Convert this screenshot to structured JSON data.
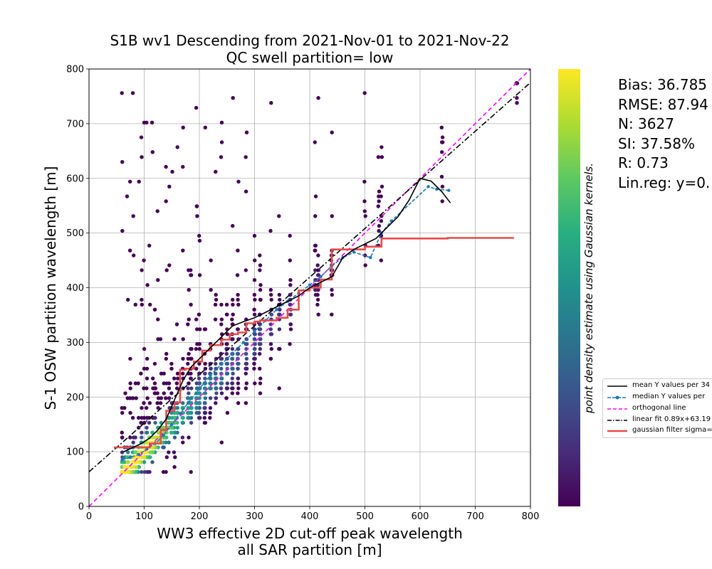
{
  "chart_data": {
    "type": "scatter",
    "title": "S1B wv1 Descending from 2021-Nov-01 to 2021-Nov-22",
    "subtitle": "QC swell partition= low",
    "xlabel_line1": "WW3 effective 2D cut-off peak wavelength",
    "xlabel_line2": "all SAR partition [m]",
    "ylabel": "S-1 OSW partition wavelength [m]",
    "colorbar_label": "point density estimate using Gaussian kernels.",
    "colormap": "viridis",
    "xlim": [
      0,
      800
    ],
    "ylim": [
      0,
      800
    ],
    "xticks": [
      "0",
      "100",
      "200",
      "300",
      "400",
      "500",
      "600",
      "700",
      "800"
    ],
    "yticks": [
      "0",
      "100",
      "200",
      "300",
      "400",
      "500",
      "600",
      "700",
      "800"
    ],
    "grid": true,
    "legend_position": "right, outside",
    "stats": [
      "Bias: 36.785",
      "RMSE: 87.94",
      "N: 3627",
      "SI: 37.58%",
      "R: 0.73",
      "Lin.reg: y=0."
    ],
    "legend": [
      {
        "label": "mean Y values per 34",
        "color": "#000000",
        "style": "solid"
      },
      {
        "label": "median Y values per",
        "color": "#1f77b4",
        "style": "dashed-dot-marker"
      },
      {
        "label": "orthogonal line",
        "color": "#ff00ff",
        "style": "dashed"
      },
      {
        "label": "linear fit 0.89x+63.19",
        "color": "#000000",
        "style": "dashdot"
      },
      {
        "label": "gaussian filter sigma=",
        "color": "#e84a4a",
        "style": "thick"
      }
    ],
    "series": [
      {
        "name": "mean Y values per 34",
        "x": [
          63,
          80,
          95,
          110,
          125,
          140,
          155,
          170,
          185,
          200,
          220,
          240,
          260,
          280,
          300,
          320,
          340,
          360,
          380,
          400,
          420,
          440,
          460,
          480,
          500,
          520,
          540,
          560,
          580,
          600,
          620,
          640,
          655
        ],
        "y": [
          100,
          108,
          115,
          125,
          140,
          160,
          195,
          230,
          255,
          270,
          290,
          310,
          330,
          338,
          345,
          355,
          365,
          375,
          385,
          400,
          410,
          420,
          455,
          470,
          480,
          490,
          510,
          530,
          560,
          600,
          595,
          575,
          555
        ]
      },
      {
        "name": "median Y values per",
        "x": [
          60,
          75,
          90,
          105,
          120,
          135,
          150,
          165,
          180,
          200,
          220,
          240,
          260,
          280,
          300,
          320,
          340,
          360,
          380,
          400,
          420,
          440,
          460,
          480,
          510,
          530,
          548,
          615,
          630,
          652
        ],
        "y": [
          85,
          90,
          95,
          105,
          115,
          130,
          150,
          170,
          190,
          215,
          240,
          260,
          280,
          300,
          320,
          340,
          360,
          375,
          390,
          405,
          420,
          440,
          455,
          465,
          455,
          500,
          522,
          585,
          580,
          578
        ]
      },
      {
        "name": "orthogonal line",
        "x": [
          0,
          800
        ],
        "y": [
          0,
          800
        ]
      },
      {
        "name": "linear fit 0.89x+63.19",
        "x": [
          0,
          800
        ],
        "y": [
          63.19,
          775.19
        ]
      },
      {
        "name": "gaussian filter sigma=",
        "x": [
          45,
          90,
          110,
          130,
          140,
          155,
          165,
          175,
          190,
          205,
          220,
          240,
          255,
          270,
          285,
          300,
          310,
          340,
          360,
          380,
          400,
          420,
          440,
          460,
          480,
          500,
          510,
          530,
          550,
          650,
          770
        ],
        "y": [
          108,
          108,
          115,
          140,
          175,
          190,
          250,
          252,
          265,
          285,
          295,
          305,
          315,
          318,
          335,
          338,
          340,
          345,
          360,
          395,
          400,
          415,
          470,
          470,
          470,
          475,
          475,
          490,
          490,
          491,
          491
        ]
      }
    ]
  }
}
